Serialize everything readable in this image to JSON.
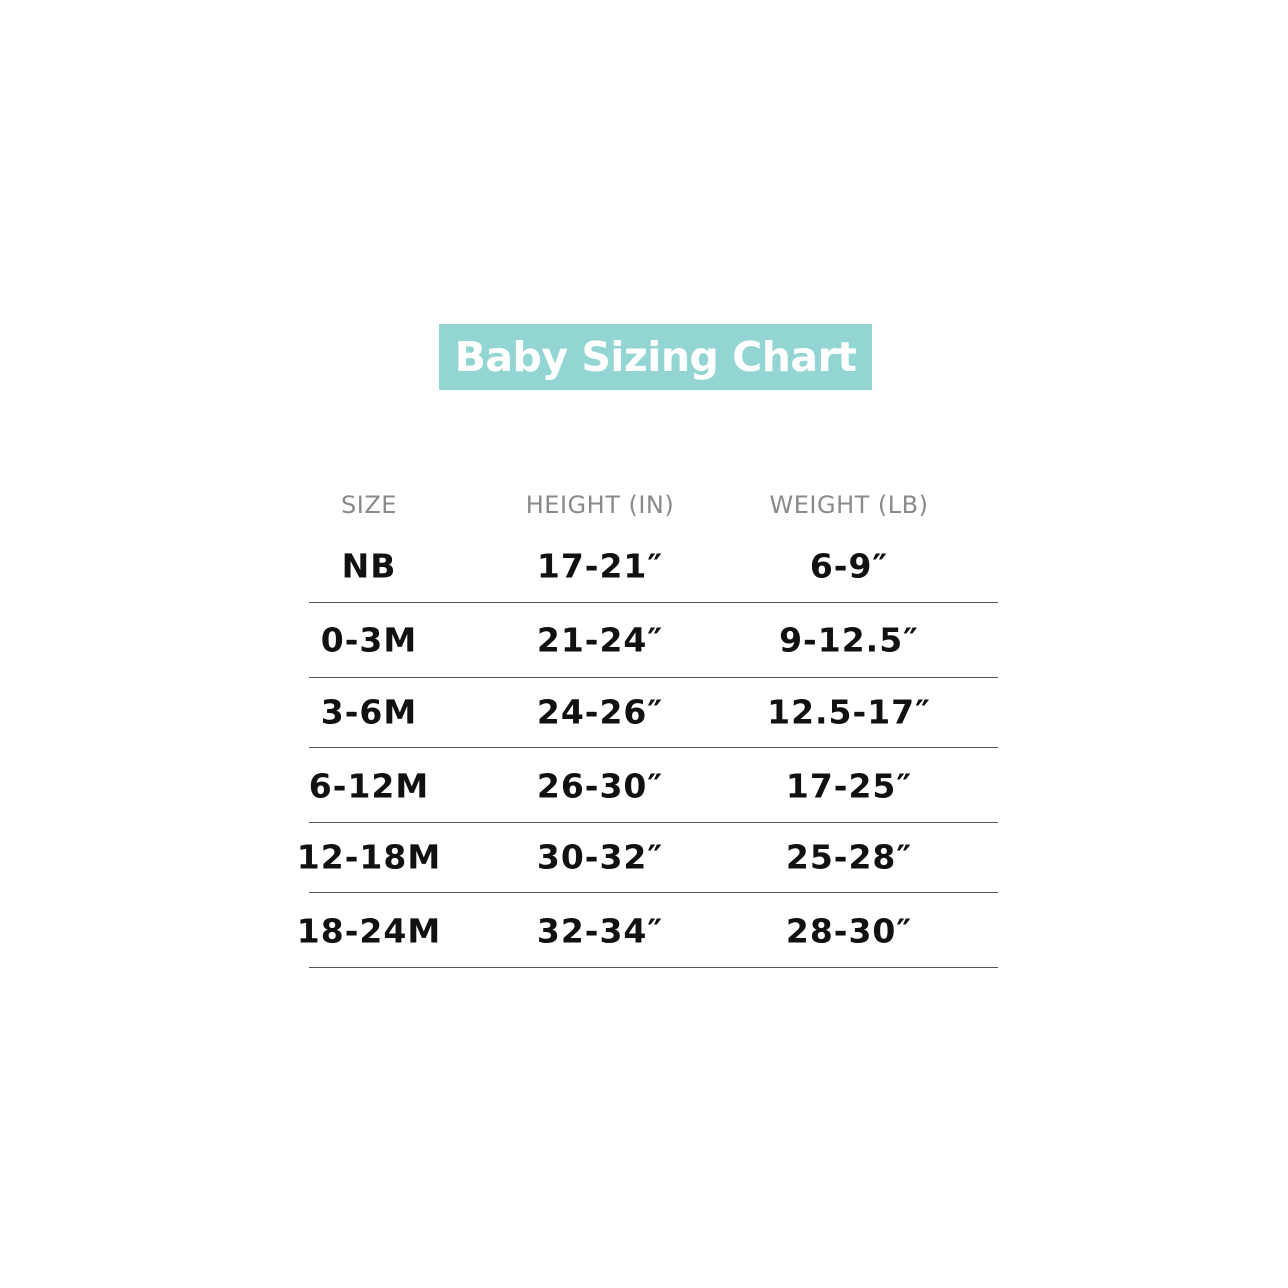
{
  "title": "Baby Sizing Chart",
  "colors": {
    "title_background": "#93d5d2",
    "title_text": "#ffffff",
    "header_text": "#8a8a8a",
    "value_text": "#111111"
  },
  "headers": [
    "SIZE",
    "HEIGHT (IN)",
    "WEIGHT (LB)"
  ],
  "rows": [
    [
      "NB",
      "17-21″",
      "6-9″"
    ],
    [
      "0-3M",
      "21-24″",
      "9-12.5″"
    ],
    [
      "3-6M",
      "24-26″",
      "12.5-17″"
    ],
    [
      "6-12M",
      "26-30″",
      "17-25″"
    ],
    [
      "12-18M",
      "30-32″",
      "25-28″"
    ],
    [
      "18-24M",
      "32-34″",
      "28-30″"
    ]
  ]
}
